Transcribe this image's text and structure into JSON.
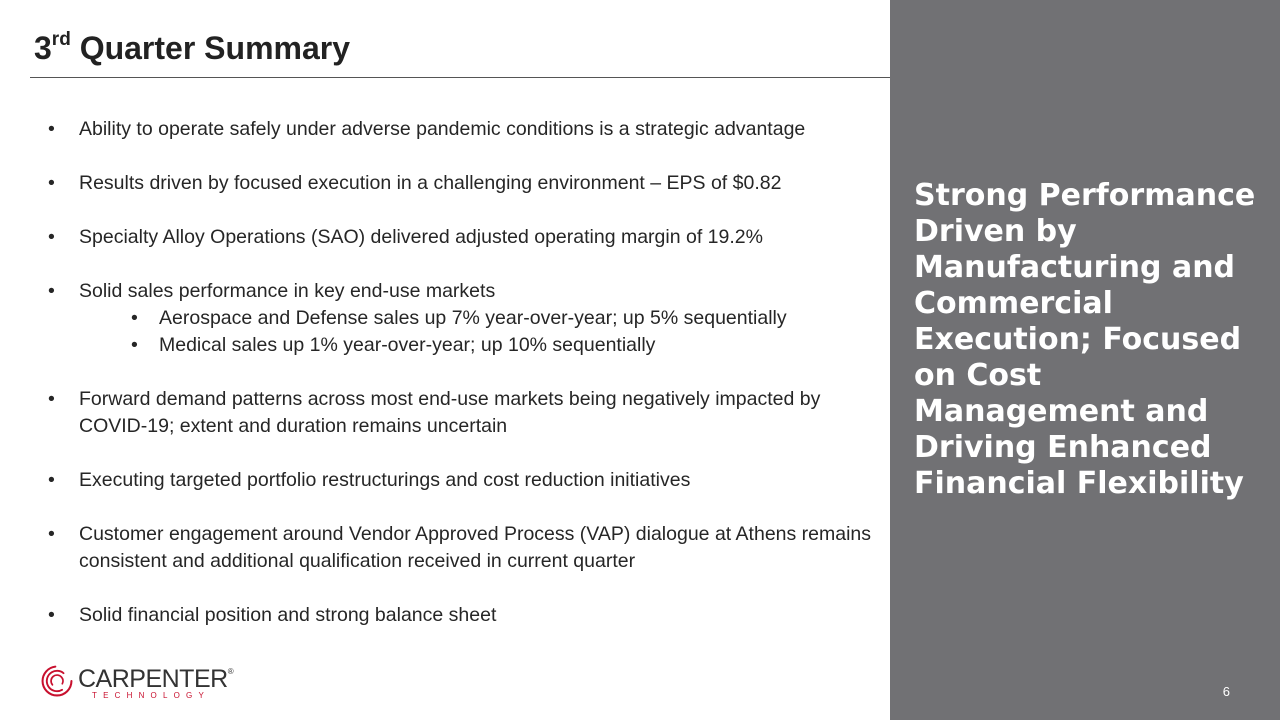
{
  "slide": {
    "title_prefix": "3",
    "title_sup": "rd",
    "title_rest": " Quarter Summary",
    "page_number": "6"
  },
  "bullets": [
    {
      "text": "Ability to operate safely under adverse pandemic conditions is a strategic advantage",
      "subs": []
    },
    {
      "text": "Results driven by focused execution in a challenging environment – EPS of $0.82",
      "subs": []
    },
    {
      "text": "Specialty Alloy Operations (SAO) delivered adjusted operating margin of 19.2%",
      "subs": []
    },
    {
      "text": "Solid sales performance in key end-use markets",
      "subs": [
        "Aerospace and Defense sales up 7% year-over-year; up 5% sequentially",
        "Medical sales up 1% year-over-year; up 10% sequentially"
      ]
    },
    {
      "text": "Forward demand patterns across most end-use markets being negatively impacted by COVID-19; extent and duration remains uncertain",
      "subs": []
    },
    {
      "text": "Executing targeted portfolio restructurings and cost reduction initiatives",
      "subs": []
    },
    {
      "text": "Customer engagement around Vendor Approved Process (VAP) dialogue at Athens remains consistent and additional qualification received in current quarter",
      "subs": []
    },
    {
      "text": "Solid financial position and strong balance sheet",
      "subs": []
    }
  ],
  "panel": {
    "tagline": "Strong Performance Driven by Manufacturing and Commercial Execution; Focused on Cost Management and Driving Enhanced Financial Flexibility",
    "background": "#717174"
  },
  "logo": {
    "name": "CARPENTER",
    "registered": "®",
    "sub": "TECHNOLOGY",
    "icon": "carpenter-swirl-logo-icon",
    "brand_color": "#c8102e"
  }
}
